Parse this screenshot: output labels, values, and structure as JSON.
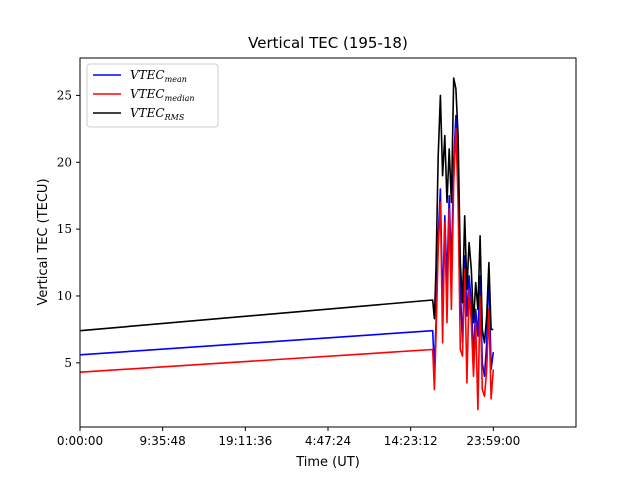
{
  "chart_data": {
    "type": "line",
    "title": "Vertical TEC (195-18)",
    "xlabel": "Time (UT)",
    "ylabel": "Vertical TEC (TECU)",
    "xlim": [
      0,
      0.9
    ],
    "ylim": [
      0.2,
      27.8
    ],
    "x_ticks": [
      {
        "value": 0.0,
        "label": "0:00:00"
      },
      {
        "value": 0.15,
        "label": "9:35:48"
      },
      {
        "value": 0.3,
        "label": "19:11:36"
      },
      {
        "value": 0.45,
        "label": "4:47:24"
      },
      {
        "value": 0.6,
        "label": "14:23:12"
      },
      {
        "value": 0.75,
        "label": "23:59:00"
      }
    ],
    "y_ticks": [
      {
        "value": 5,
        "label": "5"
      },
      {
        "value": 10,
        "label": "10"
      },
      {
        "value": 15,
        "label": "15"
      },
      {
        "value": 20,
        "label": "20"
      },
      {
        "value": 25,
        "label": "25"
      }
    ],
    "legend_position": "top-left",
    "series": [
      {
        "name": "VTEC_mean",
        "legend_base": "VTEC",
        "legend_sub": "mean",
        "color": "#0000ff",
        "x": [
          0.0,
          0.64,
          0.643,
          0.646,
          0.65,
          0.654,
          0.658,
          0.662,
          0.666,
          0.67,
          0.674,
          0.678,
          0.682,
          0.686,
          0.69,
          0.694,
          0.698,
          0.702,
          0.706,
          0.71,
          0.714,
          0.718,
          0.722,
          0.726,
          0.73,
          0.734,
          0.738,
          0.742,
          0.746,
          0.75
        ],
        "y": [
          5.6,
          7.4,
          4.5,
          8.0,
          14.5,
          18.0,
          9.0,
          16.0,
          11.0,
          17.5,
          12.0,
          20.0,
          23.5,
          18.0,
          10.5,
          6.5,
          13.0,
          8.5,
          11.5,
          9.5,
          5.5,
          9.0,
          7.0,
          11.5,
          5.0,
          4.0,
          6.5,
          12.0,
          4.5,
          5.8
        ]
      },
      {
        "name": "VTEC_median",
        "legend_base": "VTEC",
        "legend_sub": "median",
        "color": "#ff0000",
        "x": [
          0.0,
          0.64,
          0.643,
          0.646,
          0.65,
          0.654,
          0.658,
          0.662,
          0.666,
          0.67,
          0.674,
          0.678,
          0.682,
          0.686,
          0.69,
          0.694,
          0.698,
          0.702,
          0.706,
          0.71,
          0.714,
          0.718,
          0.722,
          0.726,
          0.73,
          0.734,
          0.738,
          0.742,
          0.746,
          0.75
        ],
        "y": [
          4.3,
          6.0,
          3.0,
          7.0,
          13.5,
          17.0,
          6.5,
          15.5,
          8.0,
          16.5,
          9.0,
          18.5,
          22.5,
          17.0,
          6.0,
          5.5,
          12.0,
          3.5,
          10.5,
          8.0,
          4.0,
          8.0,
          1.5,
          10.0,
          3.0,
          2.5,
          4.5,
          9.0,
          2.3,
          4.5
        ]
      },
      {
        "name": "VTEC_RMS",
        "legend_base": "VTEC",
        "legend_sub": "RMS",
        "color": "#000000",
        "x": [
          0.0,
          0.64,
          0.643,
          0.646,
          0.65,
          0.654,
          0.658,
          0.662,
          0.666,
          0.67,
          0.674,
          0.678,
          0.682,
          0.686,
          0.69,
          0.694,
          0.698,
          0.702,
          0.706,
          0.71,
          0.714,
          0.718,
          0.722,
          0.726,
          0.73,
          0.734,
          0.738,
          0.742,
          0.746,
          0.75
        ],
        "y": [
          7.4,
          9.7,
          8.3,
          12.0,
          20.5,
          25.0,
          19.0,
          22.0,
          17.0,
          21.0,
          17.0,
          26.3,
          25.5,
          22.0,
          12.5,
          9.5,
          16.0,
          10.5,
          14.0,
          12.0,
          8.0,
          11.0,
          9.0,
          14.5,
          7.5,
          6.5,
          8.5,
          12.5,
          7.5,
          7.5
        ]
      }
    ]
  }
}
